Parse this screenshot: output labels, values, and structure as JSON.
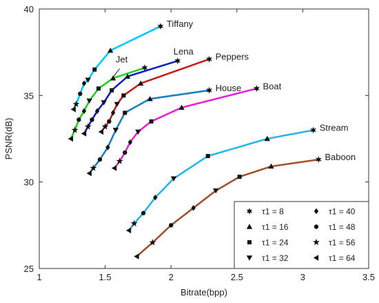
{
  "chart_data": {
    "type": "line",
    "xlabel": "Bitrate(bpp)",
    "ylabel": "PSNR(dB)",
    "xlim": [
      1,
      3.5
    ],
    "ylim": [
      25,
      40
    ],
    "xticks": [
      "1",
      "1.5",
      "2",
      "2.5",
      "3",
      "3.5"
    ],
    "yticks": [
      "25",
      "30",
      "35",
      "40"
    ],
    "grid": false,
    "legend_position": "bottom-right",
    "legend": [
      {
        "marker": "star6",
        "label": "τ1 = 8"
      },
      {
        "marker": "tri-up",
        "label": "τ1 = 16"
      },
      {
        "marker": "square",
        "label": "τ1 = 24"
      },
      {
        "marker": "tri-down",
        "label": "τ1 = 32"
      },
      {
        "marker": "diamond",
        "label": "τ1 = 40"
      },
      {
        "marker": "circle",
        "label": "τ1 = 48"
      },
      {
        "marker": "star5",
        "label": "τ1 = 56"
      },
      {
        "marker": "tri-left",
        "label": "τ1 = 64"
      }
    ],
    "marker_order": [
      "tri-left",
      "star5",
      "circle",
      "diamond",
      "tri-down",
      "square",
      "tri-up",
      "star6"
    ],
    "series": [
      {
        "name": "Tiffany",
        "color": "#00c8ff",
        "label_pos": "right",
        "x": [
          1.26,
          1.28,
          1.31,
          1.34,
          1.37,
          1.42,
          1.54,
          1.92
        ],
        "y": [
          34.2,
          34.5,
          35.1,
          35.7,
          35.9,
          36.5,
          37.6,
          39.0
        ]
      },
      {
        "name": "Jet",
        "color": "#1fd01f",
        "label_pos": "above",
        "x": [
          1.24,
          1.27,
          1.3,
          1.34,
          1.38,
          1.45,
          1.56,
          1.8
        ],
        "y": [
          32.5,
          33.0,
          33.6,
          34.1,
          34.7,
          35.4,
          36.0,
          36.6
        ]
      },
      {
        "name": "Lena",
        "color": "#0a1fcc",
        "label_pos": "above",
        "x": [
          1.34,
          1.37,
          1.4,
          1.44,
          1.49,
          1.55,
          1.67,
          2.05
        ],
        "y": [
          32.8,
          33.2,
          33.6,
          34.1,
          34.6,
          35.3,
          36.1,
          37.0
        ]
      },
      {
        "name": "Peppers",
        "color": "#cc1a1a",
        "label_pos": "right",
        "x": [
          1.47,
          1.5,
          1.53,
          1.56,
          1.59,
          1.64,
          1.77,
          2.29
        ],
        "y": [
          32.9,
          33.2,
          33.5,
          34.0,
          34.5,
          35.0,
          35.7,
          37.1
        ]
      },
      {
        "name": "House",
        "color": "#1a7fc0",
        "label_pos": "right",
        "x": [
          1.38,
          1.41,
          1.46,
          1.52,
          1.58,
          1.65,
          1.84,
          2.29
        ],
        "y": [
          30.5,
          30.8,
          31.3,
          32.0,
          33.0,
          34.0,
          34.8,
          35.3
        ]
      },
      {
        "name": "Boat",
        "color": "#e820d8",
        "label_pos": "right",
        "x": [
          1.57,
          1.61,
          1.65,
          1.69,
          1.75,
          1.85,
          2.08,
          2.65
        ],
        "y": [
          30.8,
          31.2,
          31.7,
          32.3,
          32.9,
          33.5,
          34.3,
          35.4
        ]
      },
      {
        "name": "Stream",
        "color": "#22b6f0",
        "label_pos": "right",
        "x": [
          1.68,
          1.72,
          1.79,
          1.88,
          2.02,
          2.28,
          2.73,
          3.08
        ],
        "y": [
          27.2,
          27.6,
          28.2,
          29.1,
          30.2,
          31.5,
          32.5,
          33.0
        ]
      },
      {
        "name": "Baboon",
        "color": "#a0522d",
        "label_pos": "right",
        "x": [
          1.74,
          1.86,
          2.0,
          2.17,
          2.34,
          2.52,
          2.76,
          3.12
        ],
        "y": [
          25.7,
          26.5,
          27.5,
          28.5,
          29.5,
          30.3,
          30.9,
          31.3
        ]
      }
    ]
  }
}
